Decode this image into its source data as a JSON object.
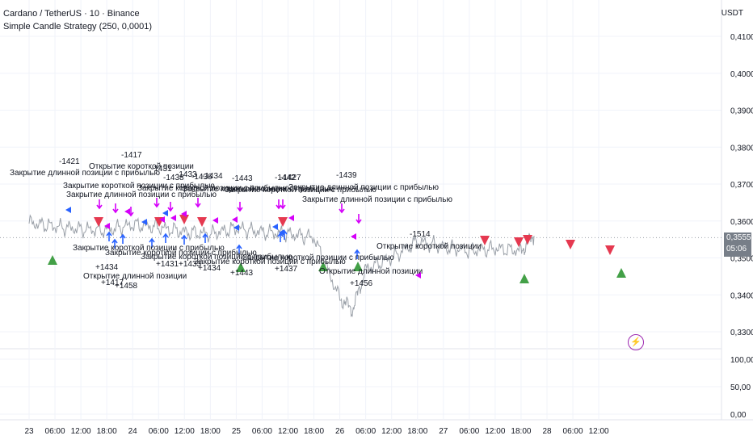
{
  "header": {
    "title": "Cardano / TetherUS · 10 · Binance",
    "strategy": "Simple Candle Strategy (250, 0,0001)"
  },
  "price_axis": {
    "currency": "USDT",
    "current_price": "0,3555",
    "countdown": "05:06"
  },
  "colors": {
    "up_signal": "#43a047",
    "down_signal": "#e53950",
    "entry_long": "#2962ff",
    "exit": "#d500f9",
    "price_line": "#9aa0a8"
  },
  "icons": {
    "alert": "lightning-bolt-icon"
  },
  "chart_data": [
    {
      "type": "line",
      "ylim": [
        0.33,
        0.41
      ],
      "yticks": [
        "0,3300",
        "0,3400",
        "0,3500",
        "0,3600",
        "0,3700",
        "0,3800",
        "0,3900",
        "0,4000",
        "0,4100"
      ],
      "xticks": [
        "23",
        "06:00",
        "12:00",
        "18:00",
        "24",
        "06:00",
        "12:00",
        "18:00",
        "25",
        "06:00",
        "12:00",
        "18:00",
        "26",
        "06:00",
        "12:00",
        "18:00",
        "27",
        "06:00",
        "12:00",
        "18:00",
        "28",
        "06:00",
        "12:00"
      ],
      "x": [
        "23 00:00",
        "23 06:00",
        "23 12:00",
        "23 18:00",
        "24 00:00",
        "24 06:00",
        "24 12:00",
        "24 18:00",
        "25 00:00",
        "25 06:00",
        "25 12:00",
        "25 18:00",
        "26 00:00",
        "26 03:00",
        "26 06:00",
        "26 12:00",
        "26 18:00",
        "27 00:00",
        "27 06:00",
        "27 12:00",
        "27 18:00",
        "27 21:00"
      ],
      "series": [
        {
          "values": [
            0.3595,
            0.3585,
            0.3578,
            0.3575,
            0.359,
            0.3583,
            0.357,
            0.3565,
            0.358,
            0.357,
            0.3565,
            0.3555,
            0.339,
            0.336,
            0.347,
            0.35,
            0.3545,
            0.353,
            0.352,
            0.3525,
            0.352,
            0.356
          ]
        }
      ],
      "labels": [
        "-1421",
        "-1417",
        "-1431",
        "-1438",
        "-1433",
        "-1436",
        "-1434",
        "-1443",
        "-1442",
        "-1427",
        "-1439",
        "-1514",
        "+1434",
        "+1417",
        "+1431",
        "+1433",
        "+1434",
        "+1443",
        "+1437",
        "+1456",
        "+1458",
        "Закрытие длинной позиции с прибылью",
        "Открытие короткой позиции",
        "Закрытие короткой позиции с прибылью",
        "Открытие длинной позиции"
      ]
    },
    {
      "type": "line",
      "ylim": [
        0,
        100
      ],
      "yticks": [
        "0,00",
        "50,00",
        "100,00"
      ]
    }
  ]
}
